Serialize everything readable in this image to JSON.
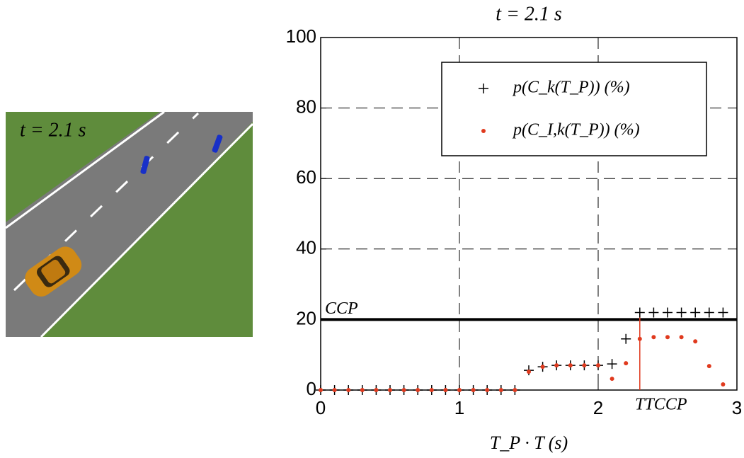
{
  "scene": {
    "label": "t = 2.1 s"
  },
  "chart_data": {
    "type": "scatter",
    "title": "t = 2.1 s",
    "x_label": "T_P · T (s)",
    "x": [
      0,
      0.1,
      0.2,
      0.3,
      0.4,
      0.5,
      0.6,
      0.7,
      0.8,
      0.9,
      1.0,
      1.1,
      1.2,
      1.3,
      1.4,
      1.5,
      1.6,
      1.7,
      1.8,
      1.9,
      2.0,
      2.1,
      2.2,
      2.3,
      2.4,
      2.5,
      2.6,
      2.7,
      2.8,
      2.9
    ],
    "series": [
      {
        "name": "p(C_k(T_P)) (%)",
        "color": "#000000",
        "marker": "plus",
        "values": [
          0,
          0,
          0,
          0,
          0,
          0,
          0,
          0,
          0,
          0,
          0,
          0,
          0,
          0,
          0,
          5.6,
          6.6,
          7,
          7,
          7,
          7,
          7.4,
          14.5,
          22,
          22,
          22,
          22,
          22,
          22,
          22
        ]
      },
      {
        "name": "p(C_I,k(T_P)) (%)",
        "color": "#e03a1e",
        "marker": "dot",
        "values": [
          0,
          0,
          0,
          0,
          0,
          0,
          0,
          0,
          0,
          0,
          0,
          0,
          0,
          0,
          0,
          5.2,
          6.6,
          7,
          7,
          7,
          7,
          3.2,
          7.6,
          14.5,
          15,
          15,
          15,
          13.8,
          6.8,
          1.6
        ]
      }
    ],
    "ccp": {
      "label": "CCP",
      "value": 20
    },
    "ttccp": {
      "label": "TTCCP",
      "value": 2.3,
      "color": "#e03a1e"
    },
    "xlim": [
      0,
      3
    ],
    "xticks": [
      0,
      1,
      2,
      3
    ],
    "ylim": [
      0,
      100
    ],
    "yticks": [
      0,
      20,
      40,
      60,
      80,
      100
    ],
    "grid": true
  }
}
